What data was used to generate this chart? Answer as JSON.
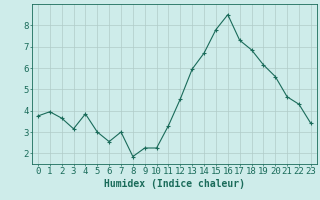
{
  "x": [
    0,
    1,
    2,
    3,
    4,
    5,
    6,
    7,
    8,
    9,
    10,
    11,
    12,
    13,
    14,
    15,
    16,
    17,
    18,
    19,
    20,
    21,
    22,
    23
  ],
  "y": [
    3.75,
    3.95,
    3.65,
    3.15,
    3.85,
    3.0,
    2.55,
    3.0,
    1.85,
    2.25,
    2.25,
    3.3,
    4.55,
    5.95,
    6.7,
    7.8,
    8.5,
    7.3,
    6.85,
    6.15,
    5.6,
    4.65,
    4.3,
    3.4
  ],
  "line_color": "#1a6b5a",
  "marker": "+",
  "marker_size": 3,
  "bg_color": "#ceecea",
  "grid_color": "#b0ccc8",
  "axis_color": "#1a6b5a",
  "tick_color": "#1a6b5a",
  "xlabel": "Humidex (Indice chaleur)",
  "ylim": [
    1.5,
    9.0
  ],
  "xlim": [
    -0.5,
    23.5
  ],
  "yticks": [
    2,
    3,
    4,
    5,
    6,
    7,
    8
  ],
  "xticks": [
    0,
    1,
    2,
    3,
    4,
    5,
    6,
    7,
    8,
    9,
    10,
    11,
    12,
    13,
    14,
    15,
    16,
    17,
    18,
    19,
    20,
    21,
    22,
    23
  ],
  "xlabel_fontsize": 7,
  "tick_fontsize": 6.5
}
